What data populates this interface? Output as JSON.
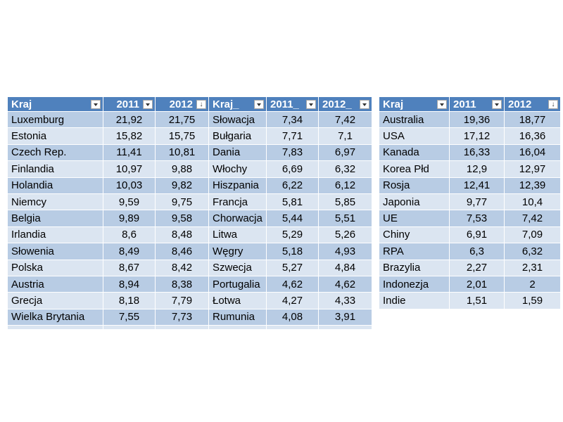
{
  "left_table": {
    "headers": [
      "Kraj",
      "2011",
      "2012",
      "Kraj_",
      "2011_",
      "2012_"
    ],
    "rows": [
      [
        "Luxemburg",
        "21,92",
        "21,75",
        "Słowacja",
        "7,34",
        "7,42"
      ],
      [
        "Estonia",
        "15,82",
        "15,75",
        "Bułgaria",
        "7,71",
        "7,1"
      ],
      [
        "Czech Rep.",
        "11,41",
        "10,81",
        "Dania",
        "7,83",
        "6,97"
      ],
      [
        "Finlandia",
        "10,97",
        "9,88",
        "Włochy",
        "6,69",
        "6,32"
      ],
      [
        "Holandia",
        "10,03",
        "9,82",
        "Hiszpania",
        "6,22",
        "6,12"
      ],
      [
        "Niemcy",
        "9,59",
        "9,75",
        "Francja",
        "5,81",
        "5,85"
      ],
      [
        "Belgia",
        "9,89",
        "9,58",
        "Chorwacja",
        "5,44",
        "5,51"
      ],
      [
        "Irlandia",
        "8,6",
        "8,48",
        "Litwa",
        "5,29",
        "5,26"
      ],
      [
        "Słowenia",
        "8,49",
        "8,46",
        "Węgry",
        "5,18",
        "4,93"
      ],
      [
        "Polska",
        "8,67",
        "8,42",
        "Szwecja",
        "5,27",
        "4,84"
      ],
      [
        "Austria",
        "8,94",
        "8,38",
        "Portugalia",
        "4,62",
        "4,62"
      ],
      [
        "Grecja",
        "8,18",
        "7,79",
        "Łotwa",
        "4,27",
        "4,33"
      ],
      [
        "Wielka Brytania",
        "7,55",
        "7,73",
        "Rumunia",
        "4,08",
        "3,91"
      ]
    ]
  },
  "right_table": {
    "headers": [
      "Kraj",
      "2011",
      "2012"
    ],
    "rows": [
      [
        "Australia",
        "19,36",
        "18,77"
      ],
      [
        "USA",
        "17,12",
        "16,36"
      ],
      [
        "Kanada",
        "16,33",
        "16,04"
      ],
      [
        "Korea Płd",
        "12,9",
        "12,97"
      ],
      [
        "Rosja",
        "12,41",
        "12,39"
      ],
      [
        "Japonia",
        "9,77",
        "10,4"
      ],
      [
        "UE",
        "7,53",
        "7,42"
      ],
      [
        "Chiny",
        "6,91",
        "7,09"
      ],
      [
        "RPA",
        "6,3",
        "6,32"
      ],
      [
        "Brazylia",
        "2,27",
        "2,31"
      ],
      [
        "Indonezja",
        "2,01",
        "2"
      ],
      [
        "Indie",
        "1,51",
        "1,59"
      ]
    ]
  },
  "colors": {
    "header_bg": "#4f81bd",
    "row_odd": "#b8cce4",
    "row_even": "#dbe5f1"
  },
  "icons": {
    "filter": "dropdown-filter-icon",
    "sort": "sort-descending-icon"
  }
}
